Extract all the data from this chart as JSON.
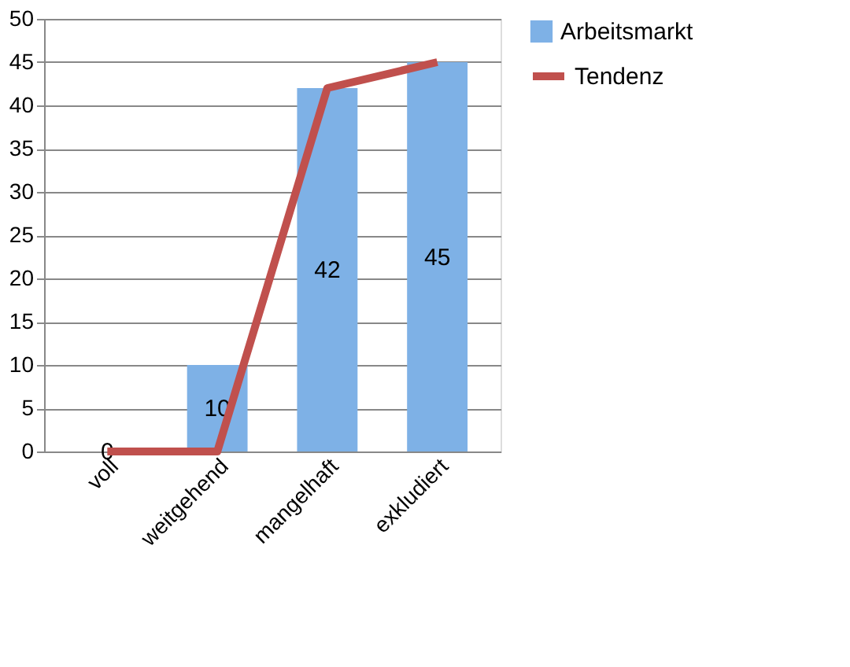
{
  "chart_data": {
    "type": "bar",
    "categories": [
      "voll",
      "weitgehend",
      "mangelhaft",
      "exkludiert"
    ],
    "series": [
      {
        "name": "Arbeitsmarkt",
        "color": "#7eb1e6",
        "values": [
          0,
          10,
          42,
          45
        ],
        "value_labels": [
          "0",
          "10",
          "42",
          "45"
        ]
      },
      {
        "name": "Tendenz",
        "type": "line",
        "color": "#c0504d",
        "values": [
          0,
          0,
          42,
          45
        ]
      }
    ],
    "ylim": [
      0,
      50
    ],
    "yticks": [
      0,
      5,
      10,
      15,
      20,
      25,
      30,
      35,
      40,
      45,
      50
    ],
    "grid": "y",
    "legend": "right"
  }
}
